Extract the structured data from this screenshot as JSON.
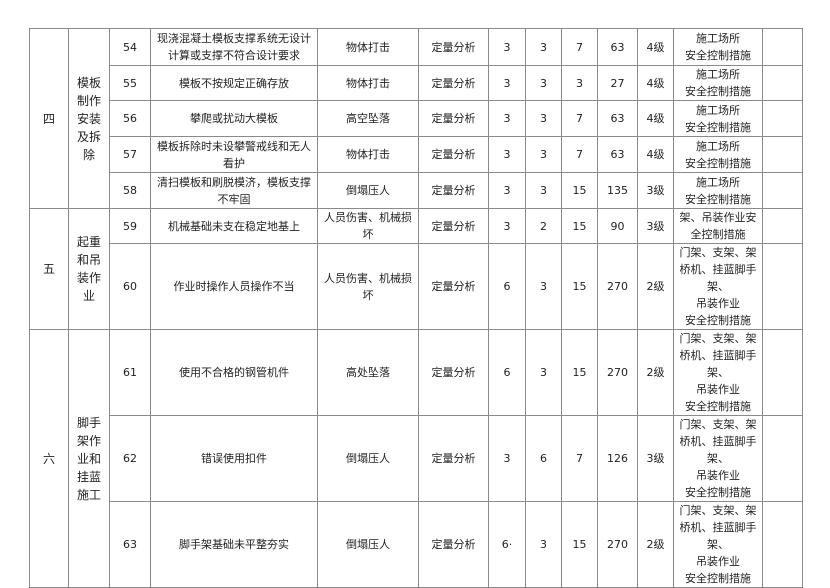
{
  "groups": [
    {
      "index": "四",
      "name": "模板制作安装及拆除",
      "rows": 5
    },
    {
      "index": "五",
      "name": "起重和吊装作业",
      "rows": 2
    },
    {
      "index": "六",
      "name": "脚手架作业和挂蓝施工",
      "rows": 3
    }
  ],
  "rows": [
    {
      "no": "54",
      "hazard": "现浇混凝土模板支撑系统无设计计算或支撑不符合设计要求",
      "accident": "物体打击",
      "method": "定量分析",
      "l": "3",
      "e": "3",
      "c": "7",
      "d": "63",
      "level": "4级",
      "measures": "施工场所\n安全控制措施",
      "note": ""
    },
    {
      "no": "55",
      "hazard": "模板不按规定正确存放",
      "accident": "物体打击",
      "method": "定量分析",
      "l": "3",
      "e": "3",
      "c": "3",
      "d": "27",
      "level": "4级",
      "measures": "施工场所\n安全控制措施",
      "note": ""
    },
    {
      "no": "56",
      "hazard": "攀爬或扰动大模板",
      "accident": "高空坠落",
      "method": "定量分析",
      "l": "3",
      "e": "3",
      "c": "7",
      "d": "63",
      "level": "4级",
      "measures": "施工场所\n安全控制措施",
      "note": ""
    },
    {
      "no": "57",
      "hazard": "模板拆除时未设攀警戒线和无人看护",
      "accident": "物体打击",
      "method": "定量分析",
      "l": "3",
      "e": "3",
      "c": "7",
      "d": "63",
      "level": "4级",
      "measures": "施工场所\n安全控制措施",
      "note": ""
    },
    {
      "no": "58",
      "hazard": "清扫模板和刷脱模济，模板支撑不牢固",
      "accident": "倒塌压人",
      "method": "定量分析",
      "l": "3",
      "e": "3",
      "c": "15",
      "d": "135",
      "level": "3级",
      "measures": "施工场所\n安全控制措施",
      "note": ""
    },
    {
      "no": "59",
      "hazard": "机械基础未支在稳定地基上",
      "accident": "人员伤害、机械损坏",
      "method": "定量分析",
      "l": "3",
      "e": "2",
      "c": "15",
      "d": "90",
      "level": "3级",
      "measures": "架、吊装作业安全控制措施",
      "note": ""
    },
    {
      "no": "60",
      "hazard": "作业时操作人员操作不当",
      "accident": "人员伤害、机械损坏",
      "method": "定量分析",
      "l": "6",
      "e": "3",
      "c": "15",
      "d": "270",
      "level": "2级",
      "measures": "门架、支架、架桥机、挂蓝脚手架、\n吊装作业\n安全控制措施",
      "note": ""
    },
    {
      "no": "61",
      "hazard": "使用不合格的钢管机件",
      "accident": "高处坠落",
      "method": "定量分析",
      "l": "6",
      "e": "3",
      "c": "15",
      "d": "270",
      "level": "2级",
      "measures": "门架、支架、架桥机、挂蓝脚手架、\n吊装作业\n安全控制措施",
      "note": ""
    },
    {
      "no": "62",
      "hazard": "错误使用扣件",
      "accident": "倒塌压人",
      "method": "定量分析",
      "l": "3",
      "e": "6",
      "c": "7",
      "d": "126",
      "level": "3级",
      "measures": "门架、支架、架桥机、挂蓝脚手架、\n吊装作业\n安全控制措施",
      "note": ""
    },
    {
      "no": "63",
      "hazard": "脚手架基础未平整夯实",
      "accident": "倒塌压人",
      "method": "定量分析",
      "l": "6·",
      "e": "3",
      "c": "15",
      "d": "270",
      "level": "2级",
      "measures": "门架、支架、架桥机、挂蓝脚手架、\n吊装作业\n安全控制措施",
      "note": ""
    }
  ]
}
